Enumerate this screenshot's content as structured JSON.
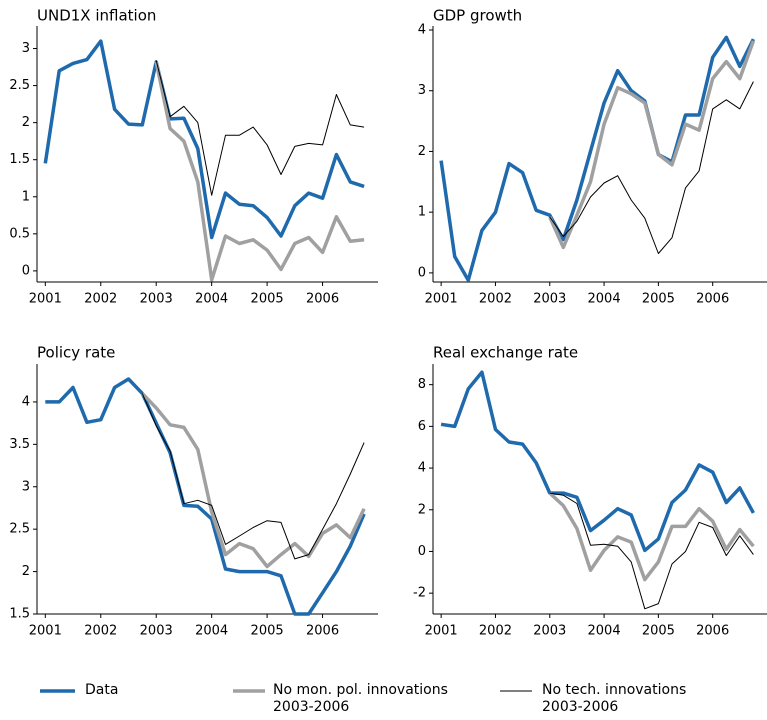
{
  "chart_data": [
    {
      "type": "line",
      "title": "UND1X inflation",
      "x": [
        2001,
        2001.25,
        2001.5,
        2001.75,
        2002,
        2002.25,
        2002.5,
        2002.75,
        2003,
        2003.25,
        2003.5,
        2003.75,
        2004,
        2004.25,
        2004.5,
        2004.75,
        2005,
        2005.25,
        2005.5,
        2005.75,
        2006,
        2006.25,
        2006.5,
        2006.75
      ],
      "xlim": [
        2000.85,
        2007.0
      ],
      "xticks": [
        2001,
        2002,
        2003,
        2004,
        2005,
        2006
      ],
      "ylim": [
        -0.15,
        3.25
      ],
      "yticks": [
        0,
        0.5,
        1,
        1.5,
        2,
        2.5,
        3
      ],
      "series": [
        {
          "name": "Data",
          "color": "#1f6aad",
          "values": [
            1.45,
            2.7,
            2.8,
            2.85,
            3.1,
            2.18,
            1.98,
            1.97,
            2.82,
            2.05,
            2.06,
            1.65,
            0.45,
            1.05,
            0.9,
            0.88,
            0.72,
            0.47,
            0.88,
            1.05,
            0.98,
            1.57,
            1.2,
            1.14
          ]
        },
        {
          "name": "No mon. pol. innovations\n2003-2006",
          "color": "#a0a0a0",
          "values": [
            null,
            null,
            null,
            null,
            null,
            null,
            null,
            null,
            2.82,
            1.92,
            1.75,
            1.2,
            -0.12,
            0.47,
            0.37,
            0.42,
            0.28,
            0.02,
            0.37,
            0.45,
            0.25,
            0.73,
            0.4,
            0.42
          ]
        },
        {
          "name": "No tech. innovations\n2003-2006",
          "color": "#000000",
          "values": [
            null,
            null,
            null,
            null,
            null,
            null,
            null,
            null,
            2.84,
            2.08,
            2.22,
            2.0,
            1.02,
            1.83,
            1.83,
            1.94,
            1.7,
            1.3,
            1.68,
            1.72,
            1.7,
            2.38,
            1.97,
            1.94
          ]
        }
      ]
    },
    {
      "type": "line",
      "title": "GDP growth",
      "x": [
        2001,
        2001.25,
        2001.5,
        2001.75,
        2002,
        2002.25,
        2002.5,
        2002.75,
        2003,
        2003.25,
        2003.5,
        2003.75,
        2004,
        2004.25,
        2004.5,
        2004.75,
        2005,
        2005.25,
        2005.5,
        2005.75,
        2006,
        2006.25,
        2006.5,
        2006.75
      ],
      "xlim": [
        2000.85,
        2007.0
      ],
      "xticks": [
        2001,
        2002,
        2003,
        2004,
        2005,
        2006
      ],
      "ylim": [
        -0.15,
        4
      ],
      "yticks": [
        0,
        1,
        2,
        3,
        4
      ],
      "series": [
        {
          "name": "Data",
          "color": "#1f6aad",
          "values": [
            1.85,
            0.27,
            -0.12,
            0.7,
            1.0,
            1.8,
            1.65,
            1.03,
            0.95,
            0.55,
            1.2,
            2.0,
            2.8,
            3.33,
            3.0,
            2.83,
            1.95,
            1.83,
            2.6,
            2.6,
            3.55,
            3.88,
            3.4,
            3.85
          ]
        },
        {
          "name": "No mon. pol. innovations\n2003-2006",
          "color": "#a0a0a0",
          "values": [
            null,
            null,
            null,
            null,
            null,
            null,
            null,
            null,
            0.92,
            0.42,
            0.95,
            1.5,
            2.45,
            3.05,
            2.95,
            2.8,
            1.95,
            1.78,
            2.45,
            2.35,
            3.2,
            3.48,
            3.2,
            3.82
          ]
        },
        {
          "name": "No tech. innovations\n2003-2006",
          "color": "#000000",
          "values": [
            null,
            null,
            null,
            null,
            null,
            null,
            null,
            null,
            0.92,
            0.6,
            0.85,
            1.25,
            1.48,
            1.6,
            1.2,
            0.9,
            0.32,
            0.58,
            1.4,
            1.68,
            2.7,
            2.85,
            2.7,
            3.15
          ]
        }
      ]
    },
    {
      "type": "line",
      "title": "Policy rate",
      "x": [
        2001,
        2001.25,
        2001.5,
        2001.75,
        2002,
        2002.25,
        2002.5,
        2002.75,
        2003,
        2003.25,
        2003.5,
        2003.75,
        2004,
        2004.25,
        2004.5,
        2004.75,
        2005,
        2005.25,
        2005.5,
        2005.75,
        2006,
        2006.25,
        2006.5,
        2006.75
      ],
      "xlim": [
        2000.85,
        2007.0
      ],
      "xticks": [
        2001,
        2002,
        2003,
        2004,
        2005,
        2006
      ],
      "ylim": [
        1.5,
        4.4
      ],
      "yticks": [
        1.5,
        2,
        2.5,
        3,
        3.5,
        4
      ],
      "series": [
        {
          "name": "Data",
          "color": "#1f6aad",
          "values": [
            4.0,
            4.0,
            4.17,
            3.76,
            3.79,
            4.17,
            4.27,
            4.1,
            3.75,
            3.4,
            2.78,
            2.77,
            2.62,
            2.03,
            2.0,
            2.0,
            2.0,
            1.95,
            1.5,
            1.5,
            1.75,
            2.0,
            2.3,
            2.68
          ]
        },
        {
          "name": "No mon. pol. innovations\n2003-2006",
          "color": "#a0a0a0",
          "values": [
            null,
            null,
            null,
            null,
            null,
            null,
            null,
            4.1,
            3.93,
            3.73,
            3.7,
            3.44,
            2.7,
            2.2,
            2.33,
            2.27,
            2.06,
            2.2,
            2.33,
            2.18,
            2.45,
            2.55,
            2.4,
            2.74
          ]
        },
        {
          "name": "No tech. innovations\n2003-2006",
          "color": "#000000",
          "values": [
            null,
            null,
            null,
            null,
            null,
            null,
            null,
            4.1,
            3.72,
            3.42,
            2.8,
            2.84,
            2.78,
            2.32,
            2.42,
            2.52,
            2.6,
            2.58,
            2.15,
            2.2,
            2.5,
            2.8,
            3.15,
            3.52
          ]
        }
      ]
    },
    {
      "type": "line",
      "title": "Real exchange rate",
      "x": [
        2001,
        2001.25,
        2001.5,
        2001.75,
        2002,
        2002.25,
        2002.5,
        2002.75,
        2003,
        2003.25,
        2003.5,
        2003.75,
        2004,
        2004.25,
        2004.5,
        2004.75,
        2005,
        2005.25,
        2005.5,
        2005.75,
        2006,
        2006.25,
        2006.5,
        2006.75
      ],
      "xlim": [
        2000.85,
        2007.0
      ],
      "xticks": [
        2001,
        2002,
        2003,
        2004,
        2005,
        2006
      ],
      "ylim": [
        -3,
        8.8
      ],
      "yticks": [
        -2,
        0,
        2,
        4,
        6,
        8
      ],
      "series": [
        {
          "name": "Data",
          "color": "#1f6aad",
          "values": [
            6.1,
            6.0,
            7.8,
            8.6,
            5.85,
            5.25,
            5.15,
            4.25,
            2.8,
            2.8,
            2.6,
            1.0,
            1.5,
            2.05,
            1.75,
            0.05,
            0.6,
            2.35,
            2.95,
            4.15,
            3.8,
            2.35,
            3.05,
            1.85
          ]
        },
        {
          "name": "No mon. pol. innovations\n2003-2006",
          "color": "#a0a0a0",
          "values": [
            null,
            null,
            null,
            null,
            null,
            null,
            null,
            null,
            2.8,
            2.2,
            1.1,
            -0.9,
            0.05,
            0.7,
            0.45,
            -1.35,
            -0.5,
            1.2,
            1.2,
            2.05,
            1.45,
            0.1,
            1.05,
            0.25
          ]
        },
        {
          "name": "No tech. innovations\n2003-2006",
          "color": "#000000",
          "values": [
            null,
            null,
            null,
            null,
            null,
            null,
            null,
            null,
            2.8,
            2.7,
            2.3,
            0.3,
            0.35,
            0.25,
            -0.5,
            -2.75,
            -2.5,
            -0.6,
            0.0,
            1.4,
            1.15,
            -0.2,
            0.75,
            -0.15
          ]
        }
      ]
    }
  ]
}
